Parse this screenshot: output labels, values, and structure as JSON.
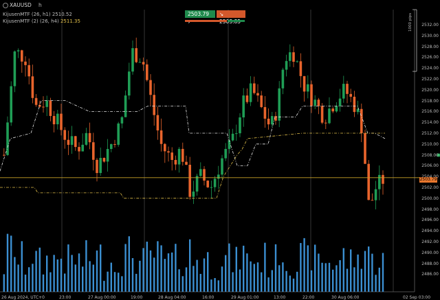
{
  "header": {
    "symbol": "XAUUSD",
    "timeframe": "h",
    "indicator1_label": "KijusenMTF (26, h1)",
    "indicator1_value": "2510.52",
    "indicator2_label": "KijusenMTF (2) (26, h4)",
    "indicator2_value": "2511.35"
  },
  "trade": {
    "buy_price": "2503.79",
    "sell_price": "2503.85"
  },
  "price_axis": {
    "ticks": [
      "2532.00",
      "2530.00",
      "2528.00",
      "2526.00",
      "2524.00",
      "2522.00",
      "2520.00",
      "2518.00",
      "2516.00",
      "2514.00",
      "2512.00",
      "2510.00",
      "2508.00",
      "2506.00",
      "2504.00",
      "2502.00",
      "2500.00",
      "2498.00",
      "2496.00",
      "2494.00",
      "2492.00",
      "2490.00",
      "2488.00",
      "2486.00"
    ],
    "current_price": "2503.79",
    "pip_label": "1000 pips"
  },
  "time_axis": {
    "labels": [
      "26 Aug 2024, UTC+0",
      "23:00",
      "27 Aug 00:00",
      "19:00",
      "28 Aug 04:00",
      "16:00",
      "29 Aug 01:00",
      "13:00",
      "22:00",
      "30 Aug 06:00",
      "02 Sep 03:00"
    ]
  },
  "colors": {
    "up": "#1f9d55",
    "down": "#e8642c",
    "volume": "#3b8fd1",
    "kijun_white": "#e6e6e6",
    "kijun_yellow": "#e2c04a",
    "price_line": "#c9a227",
    "grid": "#444"
  }
}
